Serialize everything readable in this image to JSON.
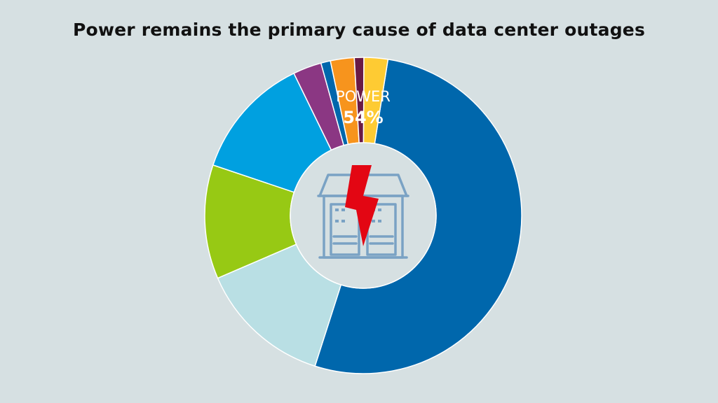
{
  "chart_data": {
    "type": "pie",
    "title": "Power remains the primary cause of data center outages",
    "slices": [
      {
        "label": "POWER",
        "value": 54,
        "value_label": "54%",
        "color": "#0067ac"
      },
      {
        "label": "",
        "value": 14,
        "color": "#b9dfe4"
      },
      {
        "label": "",
        "value": 12,
        "color": "#97c914"
      },
      {
        "label": "",
        "value": 13,
        "color": "#00a0e0"
      },
      {
        "label": "",
        "value": 3,
        "color": "#8b3783"
      },
      {
        "label": "",
        "value": 1,
        "color": "#0067ac"
      },
      {
        "label": "",
        "value": 2.5,
        "color": "#f7941d"
      },
      {
        "label": "",
        "value": 1,
        "color": "#6a1a45"
      },
      {
        "label": "",
        "value": 2.5,
        "color": "#fecb33"
      }
    ],
    "start_angle_deg": -81,
    "hole_icon": "data-center-power-outage-icon"
  }
}
